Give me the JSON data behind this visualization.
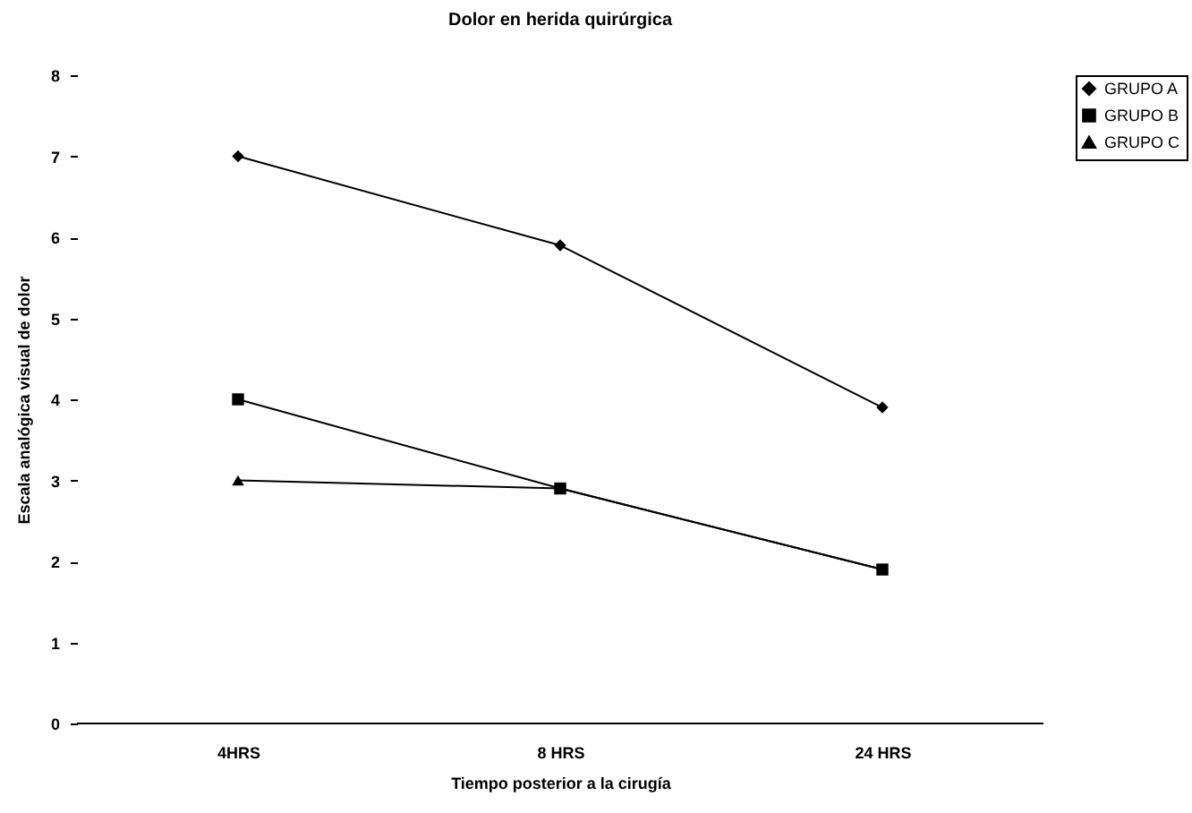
{
  "chart_data": {
    "type": "line",
    "title": "Dolor en herida quirúrgica",
    "xlabel": "Tiempo posterior a la cirugía",
    "ylabel": "Escala analógica visual de dolor",
    "categories": [
      "4HRS",
      "8 HRS",
      "24 HRS"
    ],
    "series": [
      {
        "name": "GRUPO A",
        "color": "#000000",
        "marker": "diamond",
        "values": [
          7,
          5.9,
          3.9
        ]
      },
      {
        "name": "GRUPO B",
        "color": "#000000",
        "marker": "square",
        "values": [
          4,
          2.9,
          1.9
        ]
      },
      {
        "name": "GRUPO C",
        "color": "#000000",
        "marker": "triangle",
        "values": [
          3,
          2.9,
          1.9
        ]
      }
    ],
    "ylim": [
      0,
      8
    ],
    "yticks": [
      0,
      1,
      2,
      3,
      4,
      5,
      6,
      7,
      8
    ],
    "grid": false,
    "legend": "right",
    "line_style": "solid"
  }
}
